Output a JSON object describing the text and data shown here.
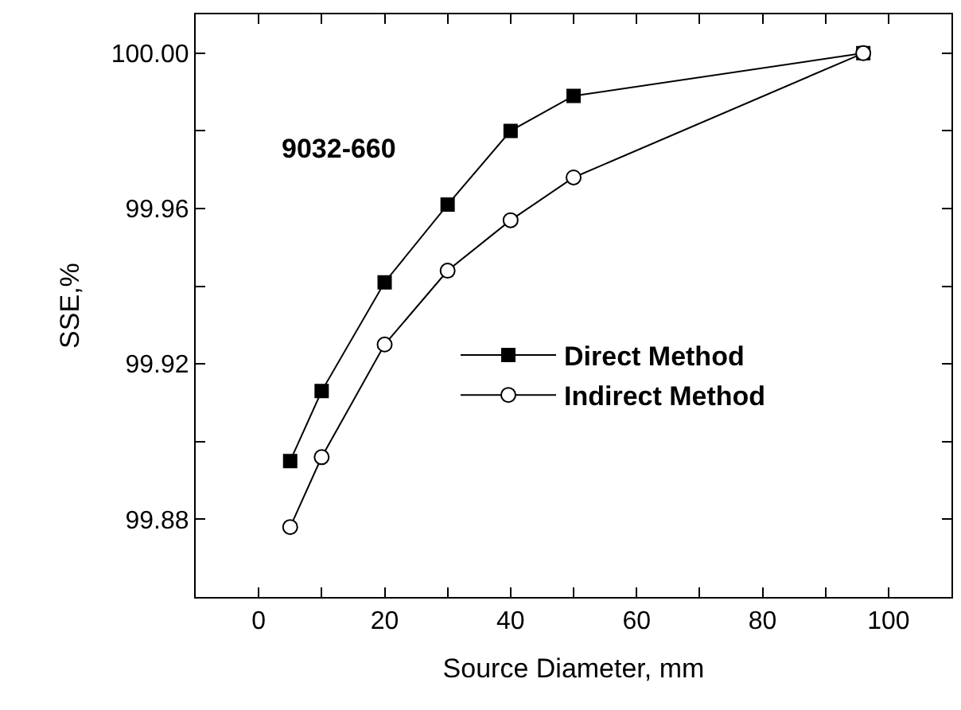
{
  "chart_data": {
    "type": "line",
    "xlabel": "Source Diameter, mm",
    "ylabel": "SSE,%",
    "xlim": [
      -10,
      110
    ],
    "ylim": [
      99.86,
      100.01
    ],
    "xticks": [
      0,
      {
        "value": 10,
        "label": null
      },
      20,
      {
        "value": 30,
        "label": null
      },
      40,
      {
        "value": 50,
        "label": null
      },
      60,
      {
        "value": 70,
        "label": null
      },
      80,
      {
        "value": 90,
        "label": null
      },
      100
    ],
    "yticks": [
      {
        "value": 99.88,
        "label": "99.88"
      },
      {
        "value": 99.9,
        "label": null
      },
      {
        "value": 99.92,
        "label": "99.92"
      },
      {
        "value": 99.94,
        "label": null
      },
      {
        "value": 99.96,
        "label": "99.96"
      },
      {
        "value": 99.98,
        "label": null
      },
      {
        "value": 100.0,
        "label": "100.00"
      }
    ],
    "x": [
      5,
      10,
      20,
      30,
      40,
      50,
      96
    ],
    "series": [
      {
        "name": "Direct Method",
        "color": "#000000",
        "marker": "square",
        "values": [
          99.895,
          99.913,
          99.941,
          99.961,
          99.98,
          99.989,
          100.0
        ]
      },
      {
        "name": "Indirect Method",
        "color": "#000000",
        "marker": "circle",
        "values": [
          99.878,
          99.896,
          99.925,
          99.944,
          99.957,
          99.968,
          100.0
        ]
      }
    ],
    "annotations": [
      "9032-660"
    ],
    "legend": "right",
    "line_style": "solid"
  }
}
